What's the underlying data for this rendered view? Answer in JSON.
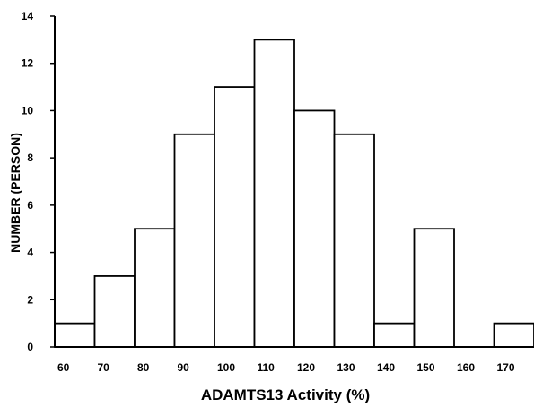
{
  "chart_data": {
    "type": "bar",
    "title": "",
    "xlabel": "ADAMTS13  Activity (%)",
    "ylabel": "NUMBER (PERSON)",
    "categories": [
      "60",
      "70",
      "80",
      "90",
      "100",
      "110",
      "120",
      "130",
      "140",
      "150",
      "160",
      "170"
    ],
    "values": [
      1,
      3,
      5,
      9,
      11,
      13,
      10,
      9,
      1,
      5,
      0,
      1
    ],
    "x_ticks": [
      "60",
      "70",
      "80",
      "90",
      "100",
      "110",
      "120",
      "130",
      "140",
      "150",
      "160",
      "170"
    ],
    "y_ticks": [
      "0",
      "2",
      "4",
      "6",
      "8",
      "10",
      "12",
      "14"
    ],
    "ylim": [
      0,
      14
    ],
    "grid": false,
    "legend": "none",
    "bar_fill": "#ffffff",
    "bar_stroke": "#000000"
  }
}
